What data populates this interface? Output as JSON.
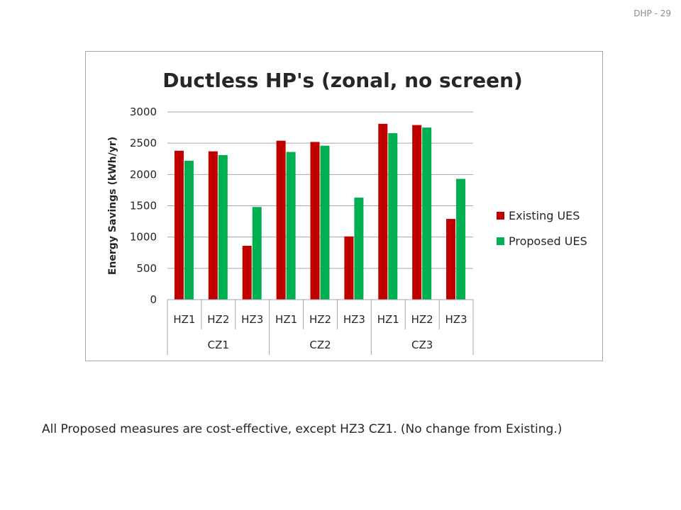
{
  "slide": {
    "number_label": "DHP - 29"
  },
  "caption": "All Proposed measures are cost-effective, except HZ3 CZ1.  (No change from Existing.)",
  "chart_data": {
    "type": "bar",
    "title": "Ductless HP's (zonal, no screen)",
    "ylabel": "Energy Savings (kWh/yr)",
    "xlabel": "",
    "ylim": [
      0,
      3000
    ],
    "yticks": [
      0,
      500,
      1000,
      1500,
      2000,
      2500,
      3000
    ],
    "grid": true,
    "legend_position": "right",
    "groups": [
      "CZ1",
      "CZ2",
      "CZ3"
    ],
    "categories": [
      "HZ1",
      "HZ2",
      "HZ3",
      "HZ1",
      "HZ2",
      "HZ3",
      "HZ1",
      "HZ2",
      "HZ3"
    ],
    "series": [
      {
        "name": "Existing UES",
        "color": "#c00000",
        "values": [
          2380,
          2370,
          860,
          2540,
          2520,
          1010,
          2810,
          2790,
          1290
        ]
      },
      {
        "name": "Proposed UES",
        "color": "#00b050",
        "values": [
          2220,
          2310,
          1480,
          2360,
          2460,
          1630,
          2660,
          2750,
          1930
        ]
      }
    ]
  }
}
